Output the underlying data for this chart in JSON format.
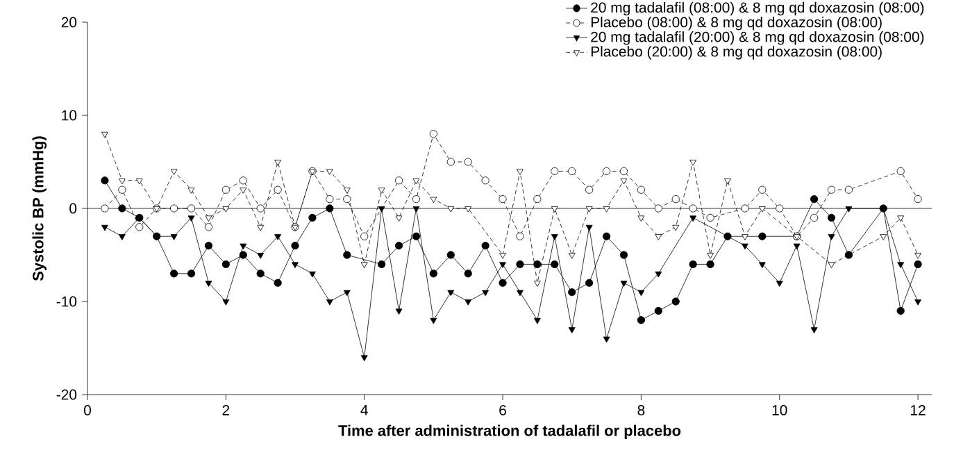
{
  "chart_data": {
    "type": "line",
    "xlabel": "Time after administration of tadalafil or placebo",
    "ylabel": "Systolic BP (mmHg)",
    "xlim": [
      0,
      12.2
    ],
    "ylim": [
      -20,
      20
    ],
    "xticks": [
      0,
      2,
      4,
      6,
      8,
      10,
      12
    ],
    "yticks": [
      -20,
      -10,
      0,
      10,
      20
    ],
    "grid": false,
    "legend": "top right",
    "ref_lines": [
      {
        "axis": "y",
        "value": 0,
        "color": "#000000",
        "line_style": "solid"
      }
    ],
    "series": [
      {
        "name": "20 mg tadalafil (08:00) & 8 mg qd doxazosin (08:00)",
        "color": "#000000",
        "marker": "circle",
        "line_style": "solid",
        "x": [
          0.25,
          0.5,
          0.75,
          1,
          1.25,
          1.5,
          1.75,
          2,
          2.25,
          2.5,
          2.75,
          3,
          3.25,
          3.5,
          3.75,
          4.25,
          4.5,
          4.75,
          5,
          5.25,
          5.5,
          5.75,
          6,
          6.25,
          6.5,
          6.75,
          7,
          7.25,
          7.5,
          7.75,
          8,
          8.25,
          8.5,
          8.75,
          9,
          9.25,
          9.75,
          10.25,
          10.5,
          10.75,
          11,
          11.5,
          11.75,
          12
        ],
        "values": [
          3,
          0,
          -1,
          -3,
          -7,
          -7,
          -4,
          -6,
          -5,
          -7,
          -8,
          -4,
          -1,
          0,
          -5,
          -6,
          -4,
          -3,
          -7,
          -5,
          -7,
          -4,
          -8,
          -6,
          -6,
          -6,
          -9,
          -8,
          -3,
          -5,
          -12,
          -11,
          -10,
          -6,
          -6,
          -3,
          -3,
          -3,
          1,
          -1,
          -5,
          0,
          -11,
          -6
        ]
      },
      {
        "name": "Placebo (08:00) & 8 mg qd doxazosin (08:00)",
        "color": "#000000",
        "marker": "circle",
        "line_style": "dashed",
        "x": [
          0.25,
          0.5,
          0.75,
          1,
          1.25,
          1.5,
          1.75,
          2,
          2.25,
          2.5,
          2.75,
          3,
          3.25,
          3.5,
          3.75,
          4,
          4.5,
          4.75,
          5,
          5.25,
          5.5,
          5.75,
          6,
          6.25,
          6.5,
          6.75,
          7,
          7.25,
          7.5,
          7.75,
          8,
          8.25,
          8.5,
          8.75,
          9,
          9.5,
          9.75,
          10,
          10.25,
          10.5,
          10.75,
          11,
          11.75,
          12
        ],
        "values": [
          0,
          2,
          -2,
          0,
          0,
          0,
          -2,
          2,
          3,
          0,
          2,
          -2,
          4,
          1,
          1,
          -3,
          3,
          1,
          8,
          5,
          5,
          3,
          1,
          -3,
          1,
          4,
          4,
          2,
          4,
          4,
          2,
          0,
          1,
          0,
          -1,
          0,
          2,
          0,
          -3,
          -1,
          2,
          2,
          4,
          1
        ]
      },
      {
        "name": "20 mg tadalafil (20:00) & 8 mg qd doxazosin (08:00)",
        "color": "#000000",
        "marker": "triangle",
        "line_style": "solid",
        "x": [
          0.25,
          0.5,
          0.75,
          1,
          1.25,
          1.5,
          1.75,
          2,
          2.25,
          2.5,
          2.75,
          3,
          3.25,
          3.5,
          3.75,
          4,
          4.25,
          4.5,
          4.75,
          5,
          5.25,
          5.5,
          5.75,
          6,
          6.25,
          6.5,
          6.75,
          7,
          7.25,
          7.5,
          7.75,
          8,
          8.25,
          8.75,
          9.5,
          9.75,
          10,
          10.25,
          10.5,
          10.75,
          11,
          11.5,
          11.75,
          12
        ],
        "values": [
          -2,
          -3,
          -1,
          -3,
          -3,
          -1,
          -8,
          -10,
          -4,
          -5,
          -3,
          -6,
          -7,
          -10,
          -9,
          -16,
          0,
          -11,
          0,
          -12,
          -9,
          -10,
          -9,
          -6,
          -9,
          -12,
          -3,
          -13,
          -2,
          -14,
          -8,
          -9,
          -7,
          -1,
          -4,
          -6,
          -8,
          -4,
          -13,
          -3,
          0,
          0,
          -6,
          -10
        ]
      },
      {
        "name": "Placebo (20:00) & 8 mg qd doxazosin (08:00)",
        "color": "#000000",
        "marker": "triangle",
        "line_style": "dashed",
        "x": [
          0.25,
          0.5,
          0.75,
          1,
          1.25,
          1.5,
          1.75,
          2,
          2.25,
          2.5,
          2.75,
          3,
          3.25,
          3.5,
          3.75,
          4,
          4.25,
          4.5,
          4.75,
          5,
          5.25,
          5.5,
          6,
          6.25,
          6.5,
          6.75,
          7,
          7.25,
          7.5,
          7.75,
          8,
          8.25,
          8.5,
          8.75,
          9,
          9.25,
          9.5,
          9.75,
          10.25,
          10.75,
          11.5,
          11.75,
          12
        ],
        "values": [
          8,
          3,
          3,
          0,
          4,
          2,
          -1,
          0,
          2,
          -2,
          5,
          -2,
          4,
          4,
          2,
          -6,
          2,
          -1,
          3,
          1,
          0,
          0,
          -5,
          4,
          -8,
          0,
          -5,
          0,
          0,
          3,
          -1,
          -3,
          -2,
          5,
          -5,
          3,
          -3,
          0,
          -3,
          -6,
          -3,
          -1,
          -5
        ]
      }
    ]
  }
}
